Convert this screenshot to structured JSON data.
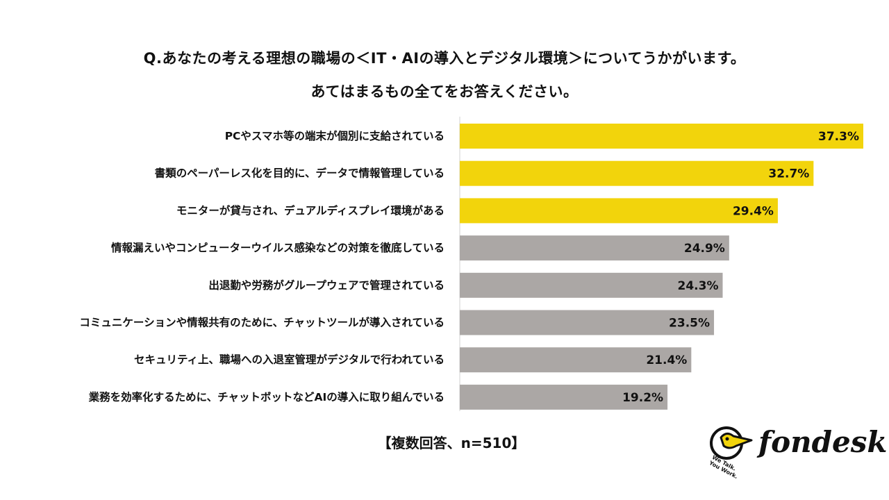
{
  "header": {
    "title_line1": "Q.あなたの考える理想の職場の＜IT・AIの導入とデジタル環境＞についてうかがいます。",
    "title_line2": "あてはまるもの全てをお答えください。"
  },
  "chart_data": {
    "type": "bar",
    "orientation": "horizontal",
    "title": "Q.あなたの考える理想の職場の＜IT・AIの導入とデジタル環境＞についてうかがいます。あてはまるもの全てをお答えください。",
    "xlabel": "",
    "ylabel": "",
    "unit": "%",
    "xlim": [
      0,
      37.3
    ],
    "categories": [
      "PCやスマホ等の端末が個別に支給されている",
      "書類のペーパーレス化を目的に、データで情報管理している",
      "モニターが貸与され、デュアルディスプレイ環境がある",
      "情報漏えいやコンピューターウイルス感染などの対策を徹底している",
      "出退勤や労務がグループウェアで管理されている",
      "コミュニケーションや情報共有のために、チャットツールが導入されている",
      "セキュリティ上、職場への入退室管理がデジタルで行われている",
      "業務を効率化するために、チャットボットなどAIの導入に取り組んでいる"
    ],
    "values": [
      37.3,
      32.7,
      29.4,
      24.9,
      24.3,
      23.5,
      21.4,
      19.2
    ],
    "value_labels": [
      "37.3%",
      "32.7%",
      "29.4%",
      "24.9%",
      "24.3%",
      "23.5%",
      "21.4%",
      "19.2%"
    ],
    "highlight_count": 3,
    "colors": {
      "highlight": "#F2D40C",
      "normal": "#ABA7A5",
      "axis": "#D0D0D0"
    }
  },
  "footer": {
    "note": "【複数回答、n=510】"
  },
  "logo": {
    "text": "fondesk",
    "tagline_line1": "We Talk.",
    "tagline_line2": "You Work."
  }
}
